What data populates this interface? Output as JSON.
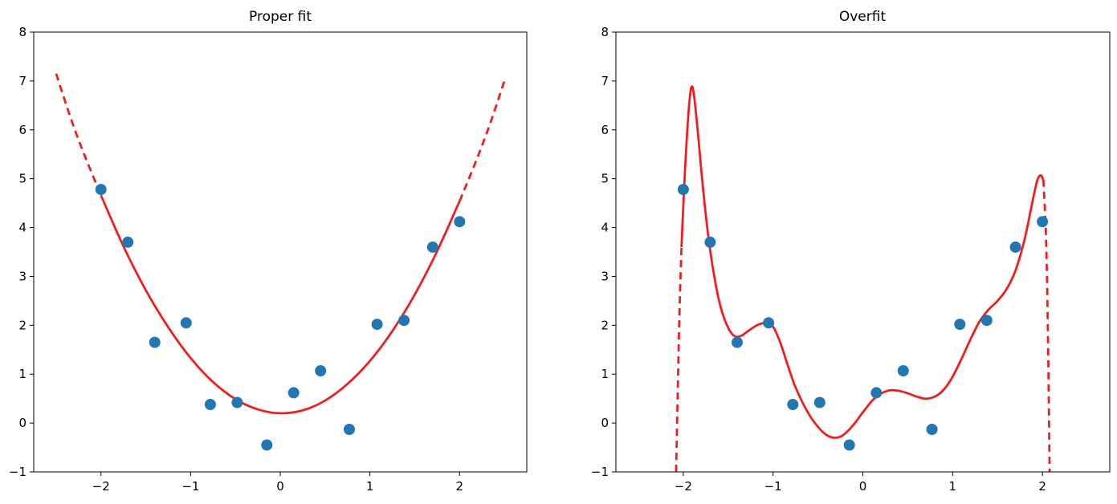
{
  "figure": {
    "background": "#ffffff"
  },
  "chart_data": [
    {
      "type": "scatter",
      "title": "Proper fit",
      "xlabel": "",
      "ylabel": "",
      "xlim": [
        -2.75,
        2.75
      ],
      "ylim": [
        -1,
        8
      ],
      "xticks": [
        -2,
        -1,
        0,
        1,
        2
      ],
      "yticks": [
        -1,
        0,
        1,
        2,
        3,
        4,
        5,
        6,
        7,
        8
      ],
      "grid": false,
      "legend": null,
      "colors": {
        "marker": "#1f77b4",
        "line": "#ff1414",
        "axis": "#000000",
        "text": "#000000"
      },
      "scatter": [
        [
          -2.0,
          4.78
        ],
        [
          -1.7,
          3.7
        ],
        [
          -1.4,
          1.65
        ],
        [
          -1.05,
          2.05
        ],
        [
          -0.78,
          0.38
        ],
        [
          -0.48,
          0.42
        ],
        [
          -0.15,
          -0.45
        ],
        [
          0.15,
          0.62
        ],
        [
          0.45,
          1.07
        ],
        [
          0.77,
          -0.13
        ],
        [
          1.08,
          2.02
        ],
        [
          1.38,
          2.1
        ],
        [
          1.7,
          3.6
        ],
        [
          2.0,
          4.12
        ]
      ],
      "curve": [
        {
          "style": "dashed",
          "points": [
            [
              -2.5,
              7.15
            ],
            [
              -2.33,
              6.2
            ],
            [
              -2.17,
              5.42
            ],
            [
              -2.0,
              4.66
            ]
          ]
        },
        {
          "style": "solid",
          "points": [
            [
              -2.0,
              4.66
            ],
            [
              -1.75,
              3.62
            ],
            [
              -1.5,
              2.72
            ],
            [
              -1.25,
              1.96
            ],
            [
              -1.0,
              1.33
            ],
            [
              -0.75,
              0.84
            ],
            [
              -0.5,
              0.49
            ],
            [
              -0.25,
              0.28
            ],
            [
              0.0,
              0.2
            ],
            [
              0.25,
              0.26
            ],
            [
              0.5,
              0.46
            ],
            [
              0.75,
              0.8
            ],
            [
              1.0,
              1.27
            ],
            [
              1.25,
              1.88
            ],
            [
              1.5,
              2.63
            ],
            [
              1.75,
              3.52
            ],
            [
              2.0,
              4.54
            ]
          ]
        },
        {
          "style": "dashed",
          "points": [
            [
              2.0,
              4.54
            ],
            [
              2.17,
              5.3
            ],
            [
              2.33,
              6.07
            ],
            [
              2.5,
              7.0
            ]
          ]
        }
      ]
    },
    {
      "type": "scatter",
      "title": "Overfit",
      "xlabel": "",
      "ylabel": "",
      "xlim": [
        -2.75,
        2.75
      ],
      "ylim": [
        -1,
        8
      ],
      "xticks": [
        -2,
        -1,
        0,
        1,
        2
      ],
      "yticks": [
        -1,
        0,
        1,
        2,
        3,
        4,
        5,
        6,
        7,
        8
      ],
      "grid": false,
      "legend": null,
      "colors": {
        "marker": "#1f77b4",
        "line": "#ff1414",
        "axis": "#000000",
        "text": "#000000"
      },
      "scatter": [
        [
          -2.0,
          4.78
        ],
        [
          -1.7,
          3.7
        ],
        [
          -1.4,
          1.65
        ],
        [
          -1.05,
          2.05
        ],
        [
          -0.78,
          0.38
        ],
        [
          -0.48,
          0.42
        ],
        [
          -0.15,
          -0.45
        ],
        [
          0.15,
          0.62
        ],
        [
          0.45,
          1.07
        ],
        [
          0.77,
          -0.13
        ],
        [
          1.08,
          2.02
        ],
        [
          1.38,
          2.1
        ],
        [
          1.7,
          3.6
        ],
        [
          2.0,
          4.12
        ]
      ],
      "curve": [
        {
          "style": "dashed",
          "points": [
            [
              -2.08,
              -1.0
            ],
            [
              -2.06,
              0.8
            ],
            [
              -2.04,
              2.4
            ],
            [
              -2.02,
              3.6
            ]
          ]
        },
        {
          "style": "solid",
          "points": [
            [
              -2.02,
              3.6
            ],
            [
              -1.98,
              5.2
            ],
            [
              -1.94,
              6.4
            ],
            [
              -1.91,
              6.87
            ],
            [
              -1.88,
              6.7
            ],
            [
              -1.83,
              5.8
            ],
            [
              -1.78,
              4.8
            ],
            [
              -1.72,
              3.8
            ],
            [
              -1.65,
              2.95
            ],
            [
              -1.58,
              2.35
            ],
            [
              -1.5,
              1.95
            ],
            [
              -1.43,
              1.78
            ],
            [
              -1.36,
              1.78
            ],
            [
              -1.28,
              1.88
            ],
            [
              -1.18,
              2.0
            ],
            [
              -1.08,
              2.05
            ],
            [
              -1.0,
              1.97
            ],
            [
              -0.92,
              1.65
            ],
            [
              -0.84,
              1.2
            ],
            [
              -0.76,
              0.78
            ],
            [
              -0.68,
              0.45
            ],
            [
              -0.58,
              0.12
            ],
            [
              -0.48,
              -0.12
            ],
            [
              -0.4,
              -0.25
            ],
            [
              -0.32,
              -0.3
            ],
            [
              -0.24,
              -0.27
            ],
            [
              -0.16,
              -0.15
            ],
            [
              -0.08,
              0.02
            ],
            [
              0.0,
              0.22
            ],
            [
              0.1,
              0.45
            ],
            [
              0.2,
              0.6
            ],
            [
              0.3,
              0.67
            ],
            [
              0.4,
              0.66
            ],
            [
              0.5,
              0.61
            ],
            [
              0.6,
              0.54
            ],
            [
              0.7,
              0.5
            ],
            [
              0.8,
              0.54
            ],
            [
              0.9,
              0.68
            ],
            [
              1.0,
              0.95
            ],
            [
              1.1,
              1.32
            ],
            [
              1.2,
              1.72
            ],
            [
              1.3,
              2.08
            ],
            [
              1.4,
              2.32
            ],
            [
              1.5,
              2.5
            ],
            [
              1.6,
              2.74
            ],
            [
              1.7,
              3.12
            ],
            [
              1.8,
              3.75
            ],
            [
              1.88,
              4.45
            ],
            [
              1.94,
              4.95
            ],
            [
              1.98,
              5.07
            ],
            [
              2.01,
              4.98
            ]
          ]
        },
        {
          "style": "dashed",
          "points": [
            [
              2.01,
              4.98
            ],
            [
              2.04,
              3.8
            ],
            [
              2.06,
              2.0
            ],
            [
              2.08,
              -1.0
            ]
          ]
        }
      ]
    }
  ]
}
